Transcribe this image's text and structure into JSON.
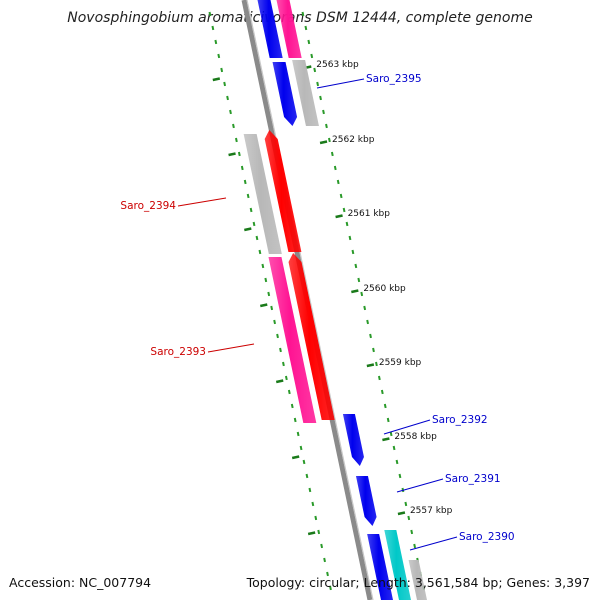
{
  "title": "Novosphingobium aromaticivorans DSM 12444, complete genome",
  "footer": {
    "accession": "Accession: NC_007794",
    "summary": "Topology: circular; Length: 3,561,584 bp; Genes: 3,397"
  },
  "colors": {
    "backbone": "#8a8a8a",
    "tick_major": "#1a7a1a",
    "tick_minor": "#2a9a2a",
    "forward_label": "#0000cc",
    "reverse_label": "#cc0000",
    "gene_blue": "#0000ee",
    "gene_red": "#ff0000",
    "gene_pink": "#ff1493",
    "gene_grey": "#b8b8b8",
    "gene_cyan": "#00c8c8"
  },
  "ruler": {
    "unit": "kbp",
    "labels": [
      "2563 kbp",
      "2562 kbp",
      "2561 kbp",
      "2560 kbp",
      "2559 kbp",
      "2558 kbp",
      "2557 kbp"
    ]
  },
  "gene_labels": [
    {
      "name": "Saro_2395",
      "strand": "forward"
    },
    {
      "name": "Saro_2394",
      "strand": "reverse"
    },
    {
      "name": "Saro_2393",
      "strand": "reverse"
    },
    {
      "name": "Saro_2392",
      "strand": "forward"
    },
    {
      "name": "Saro_2391",
      "strand": "forward"
    },
    {
      "name": "Saro_2390",
      "strand": "forward"
    }
  ]
}
